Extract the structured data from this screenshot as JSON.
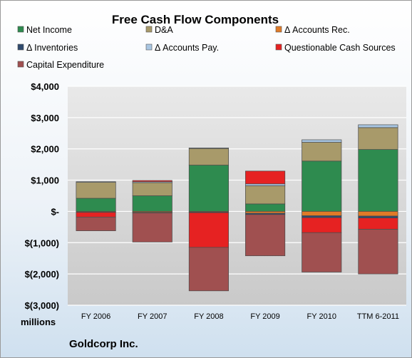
{
  "chart_data": {
    "type": "bar",
    "stacked": true,
    "title": "Free Cash Flow Components",
    "units_label": "millions",
    "company_label": "Goldcorp Inc.",
    "categories": [
      "FY 2006",
      "FY 2007",
      "FY 2008",
      "FY 2009",
      "FY 2010",
      "TTM 6-2011"
    ],
    "ylim": [
      -3000,
      4000
    ],
    "yticks": [
      4000,
      3000,
      2000,
      1000,
      0,
      -1000,
      -2000,
      -3000
    ],
    "ytick_labels": [
      "$4,000",
      "$3,000",
      "$2,000",
      "$1,000",
      "$-",
      "$(1,000)",
      "$(2,000)",
      "$(3,000)"
    ],
    "grid": true,
    "legend_position": "top",
    "series": [
      {
        "name": "Net Income",
        "color": "#2e8b4f",
        "values": [
          420,
          500,
          1480,
          240,
          1610,
          1980
        ]
      },
      {
        "name": "D&A",
        "color": "#a89a6a",
        "values": [
          510,
          420,
          530,
          580,
          600,
          700
        ]
      },
      {
        "name": "Δ Accounts Rec.",
        "color": "#e07b28",
        "values": [
          -20,
          -30,
          -20,
          -60,
          -140,
          -150
        ]
      },
      {
        "name": "Δ Inventories",
        "color": "#2f4a6e",
        "values": [
          -10,
          -20,
          -20,
          -40,
          -60,
          -60
        ]
      },
      {
        "name": "Δ Accounts Pay.",
        "color": "#a9c6e2",
        "values": [
          20,
          30,
          20,
          60,
          80,
          90
        ]
      },
      {
        "name": "Questionable Cash Sources",
        "color": "#e62222",
        "values": [
          -150,
          40,
          -1110,
          410,
          -480,
          -360
        ]
      },
      {
        "name": "Capital Expenditure",
        "color": "#a05050",
        "values": [
          -440,
          -930,
          -1390,
          -1320,
          -1260,
          -1430
        ]
      }
    ]
  }
}
